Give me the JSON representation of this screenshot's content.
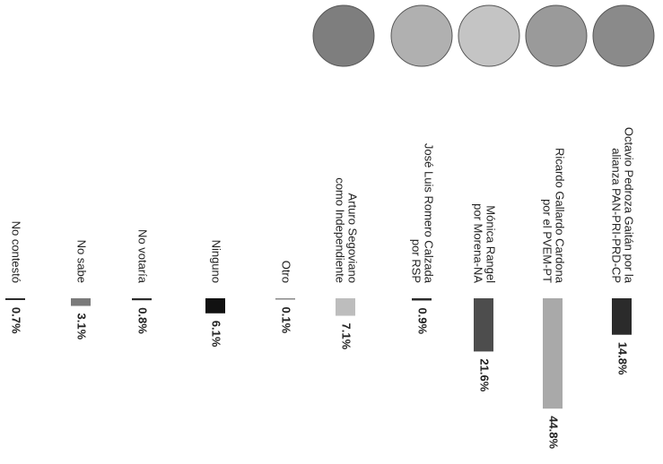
{
  "chart_data": {
    "type": "bar",
    "categories": [
      [
        "Octavio Pedroza Gaitán por la",
        "alianza PAN-PRI-PRD-CP"
      ],
      [
        "Ricardo Gallardo Cardona",
        "por el PVEM-PT"
      ],
      [
        "Mónica Rangel",
        "por Morena-NA"
      ],
      [
        "José Luis Romero Calzada",
        "por RSP"
      ],
      [
        "Arturo Segoviano",
        "como Independiente"
      ],
      [
        "Otro"
      ],
      [
        "Ninguno"
      ],
      [
        "No votaría"
      ],
      [
        "No sabe"
      ],
      [
        "No contestó"
      ]
    ],
    "values": [
      14.8,
      44.8,
      21.6,
      0.9,
      7.1,
      0.1,
      6.1,
      0.8,
      3.1,
      0.7
    ],
    "value_labels": [
      "14.8%",
      "44.8%",
      "21.6%",
      "0.9%",
      "7.1%",
      "0.1%",
      "6.1%",
      "0.8%",
      "3.1%",
      "0.7%"
    ],
    "colors": [
      "#2b2b2b",
      "#a9a9a9",
      "#4d4d4d",
      "#2b2b2b",
      "#bdbdbd",
      "#888888",
      "#111111",
      "#2b2b2b",
      "#7a7a7a",
      "#222222"
    ]
  }
}
